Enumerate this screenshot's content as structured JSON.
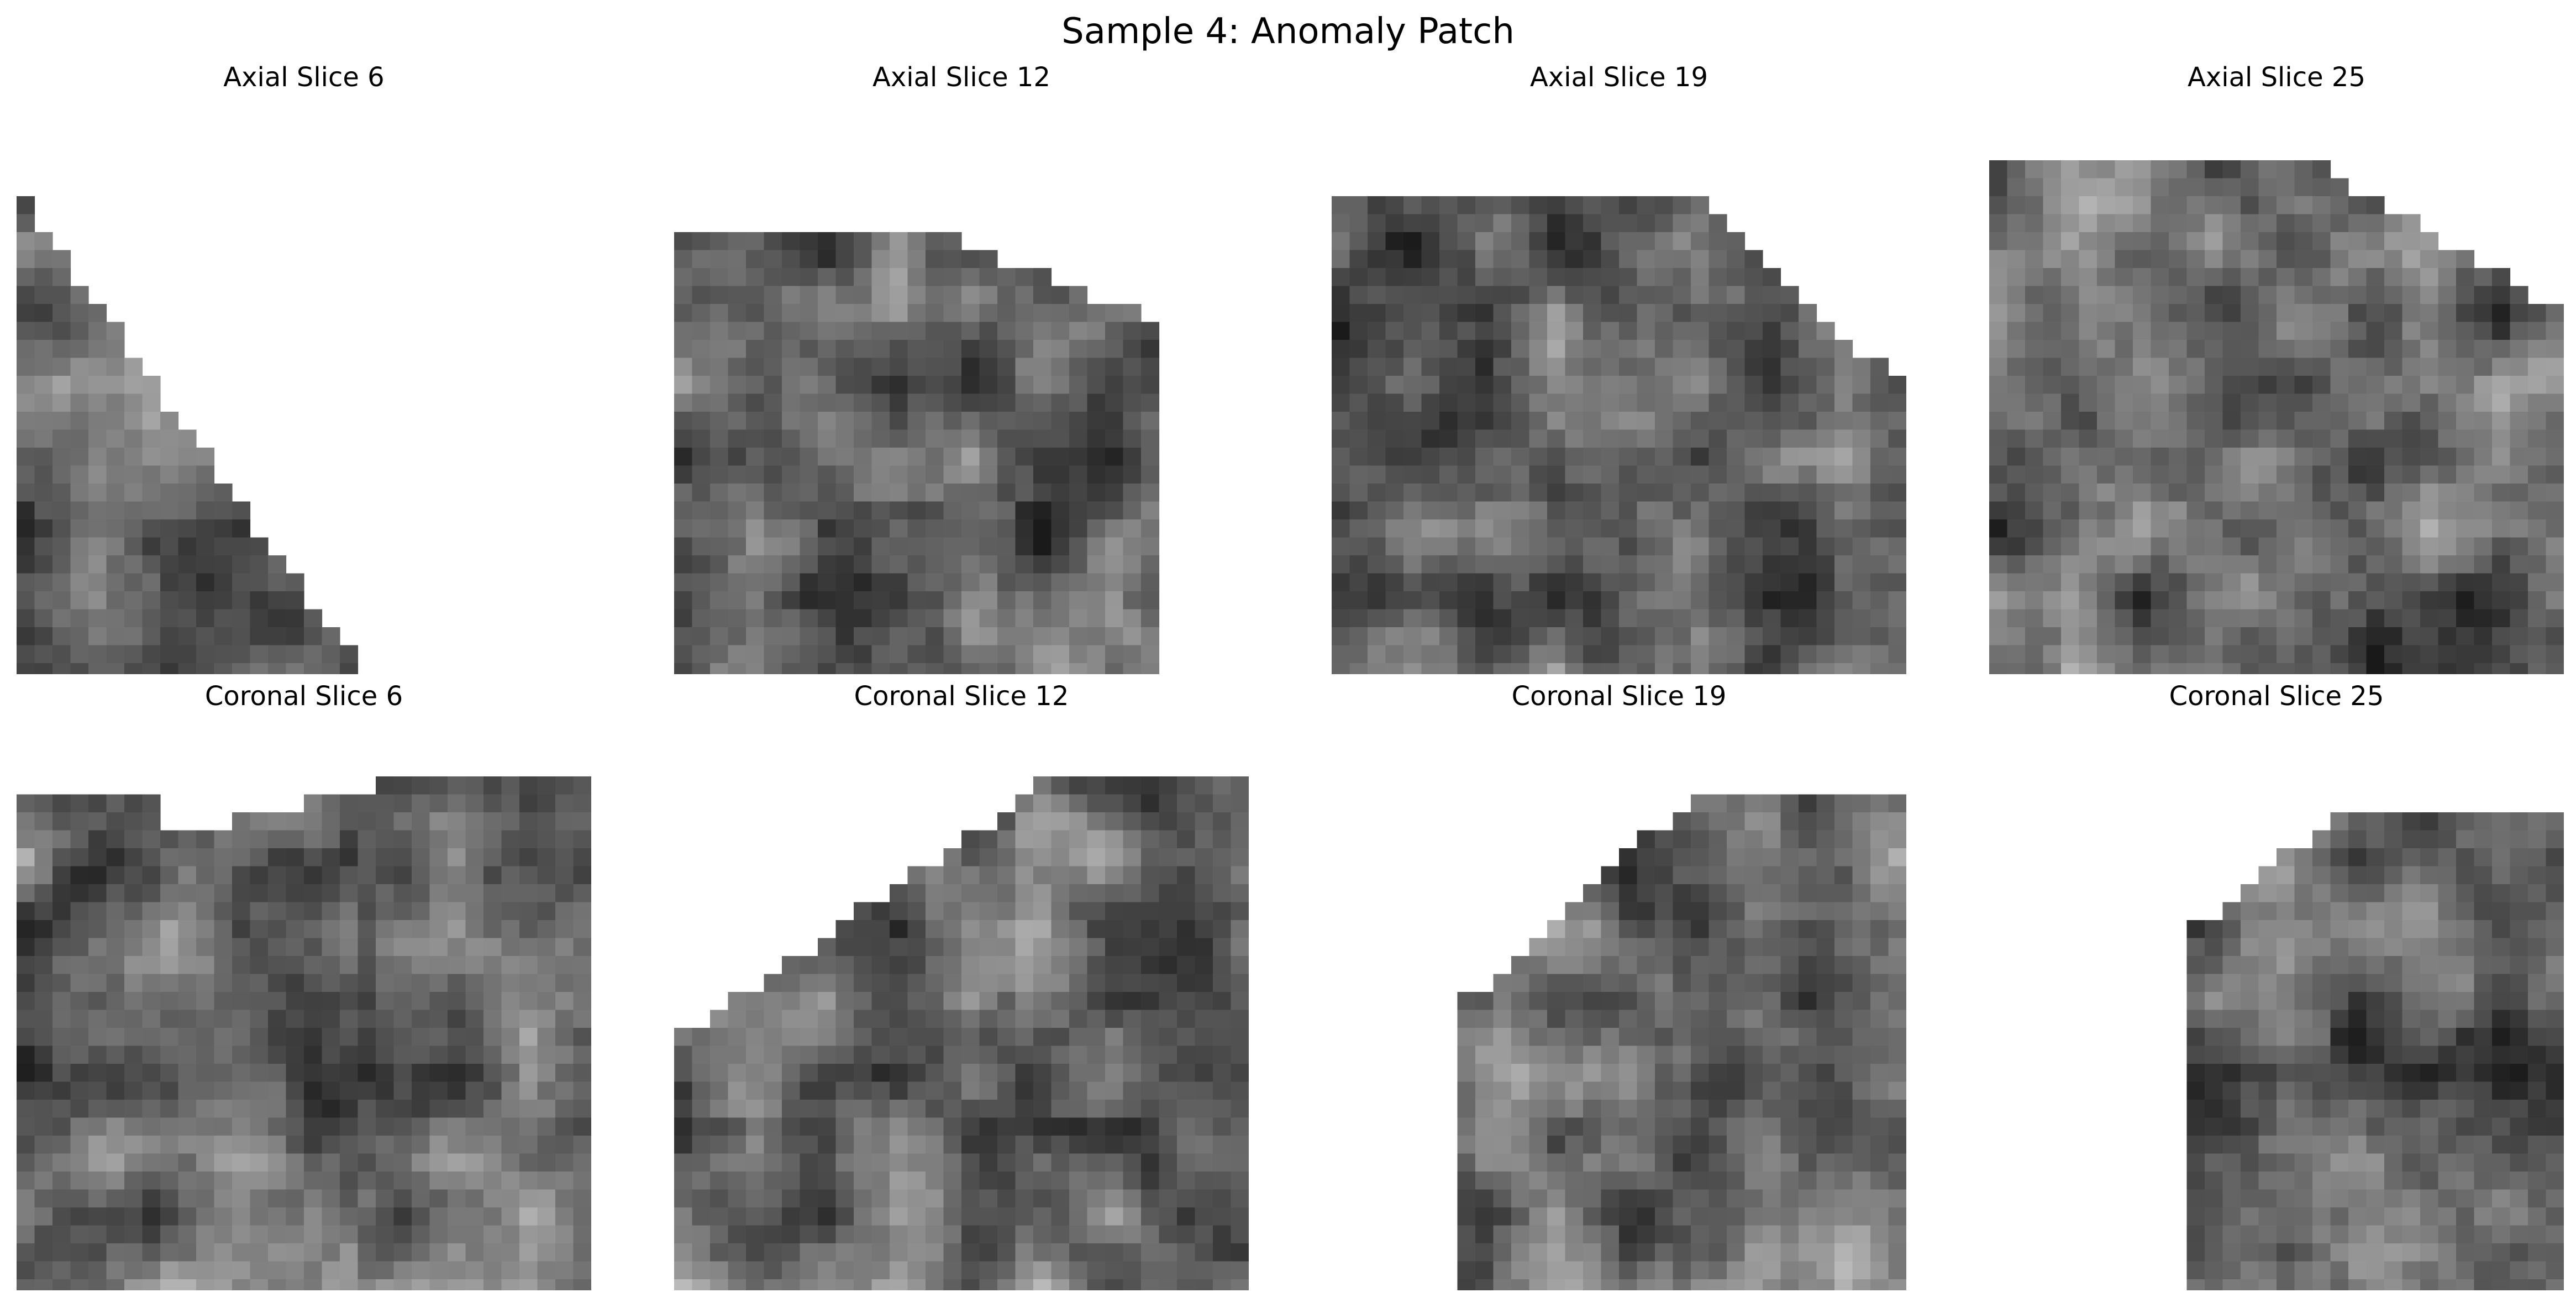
{
  "figure": {
    "title": "Sample 4: Anomaly Patch"
  },
  "panels": [
    {
      "title": "Axial Slice 6",
      "view": "axial",
      "slice": 6
    },
    {
      "title": "Axial Slice 12",
      "view": "axial",
      "slice": 12
    },
    {
      "title": "Axial Slice 19",
      "view": "axial",
      "slice": 19
    },
    {
      "title": "Axial Slice 25",
      "view": "axial",
      "slice": 25
    },
    {
      "title": "Coronal Slice 6",
      "view": "coronal",
      "slice": 6
    },
    {
      "title": "Coronal Slice 12",
      "view": "coronal",
      "slice": 12
    },
    {
      "title": "Coronal Slice 19",
      "view": "coronal",
      "slice": 19
    },
    {
      "title": "Coronal Slice 25",
      "view": "coronal",
      "slice": 25
    }
  ],
  "colormap": "gray"
}
